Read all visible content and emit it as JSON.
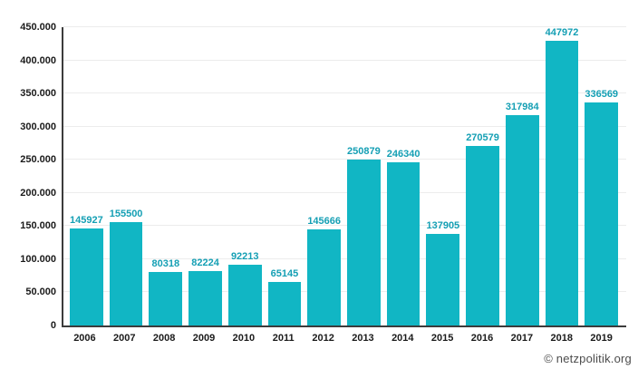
{
  "chart_data": {
    "type": "bar",
    "title": "",
    "xlabel": "",
    "ylabel": "",
    "categories": [
      "2006",
      "2007",
      "2008",
      "2009",
      "2010",
      "2011",
      "2012",
      "2013",
      "2014",
      "2015",
      "2016",
      "2017",
      "2018",
      "2019"
    ],
    "values": [
      145927,
      155500,
      80318,
      82224,
      92213,
      65145,
      145666,
      250879,
      246340,
      137905,
      270579,
      317984,
      447972,
      336569
    ],
    "bar_labels": [
      "145927",
      "155500",
      "80318",
      "82224",
      "92213",
      "65145",
      "145666",
      "250879",
      "246340",
      "137905",
      "270579",
      "317984",
      "447972",
      "336569"
    ],
    "ylim": [
      0,
      450000
    ],
    "y_tick_step": 50000,
    "y_tick_labels": [
      "0",
      "50.000",
      "100.000",
      "150.000",
      "200.000",
      "250.000",
      "300.000",
      "350.000",
      "400.000",
      "450.000"
    ],
    "grid": true,
    "legend_position": "none"
  },
  "colors": {
    "bar": "#11b6c4",
    "bar_label": "#149fb4",
    "grid": "#ececec",
    "axis": "#3c3c3c",
    "tick_text": "#1a1a1a",
    "watermark": "#4d4d4d",
    "background": "#ffffff"
  },
  "watermark": {
    "text": "© netzpolitik.org"
  }
}
